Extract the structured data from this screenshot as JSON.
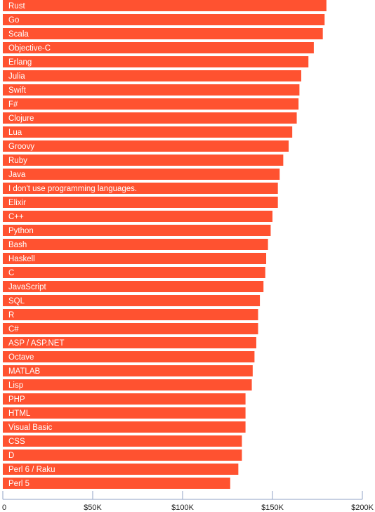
{
  "chart_data": {
    "type": "bar",
    "orientation": "horizontal",
    "title": "",
    "xlabel": "",
    "ylabel": "",
    "xlim": [
      0,
      200000
    ],
    "grid": false,
    "bar_color": "#ff5230",
    "axis_color": "#8fa2c4",
    "categories": [
      "Rust",
      "Go",
      "Scala",
      "Objective-C",
      "Erlang",
      "Julia",
      "Swift",
      "F#",
      "Clojure",
      "Lua",
      "Groovy",
      "Ruby",
      "Java",
      "I don't use programming languages.",
      "Elixir",
      "C++",
      "Python",
      "Bash",
      "Haskell",
      "C",
      "JavaScript",
      "SQL",
      "R",
      "C#",
      "ASP / ASP.NET",
      "Octave",
      "MATLAB",
      "Lisp",
      "PHP",
      "HTML",
      "Visual Basic",
      "CSS",
      "D",
      "Perl 6 / Raku",
      "Perl 5"
    ],
    "values": [
      180000,
      179000,
      178000,
      173000,
      170000,
      166000,
      165000,
      164500,
      163500,
      161000,
      159000,
      156000,
      154000,
      153000,
      153000,
      150000,
      149000,
      147500,
      146500,
      146000,
      145000,
      143000,
      142000,
      142000,
      141000,
      140000,
      139000,
      138500,
      135000,
      135000,
      135000,
      133000,
      133000,
      131000,
      126500
    ],
    "x_ticks": [
      0,
      50000,
      100000,
      150000,
      200000
    ],
    "x_tick_labels": [
      "0",
      "$50K",
      "$100K",
      "$150K",
      "$200K"
    ]
  }
}
